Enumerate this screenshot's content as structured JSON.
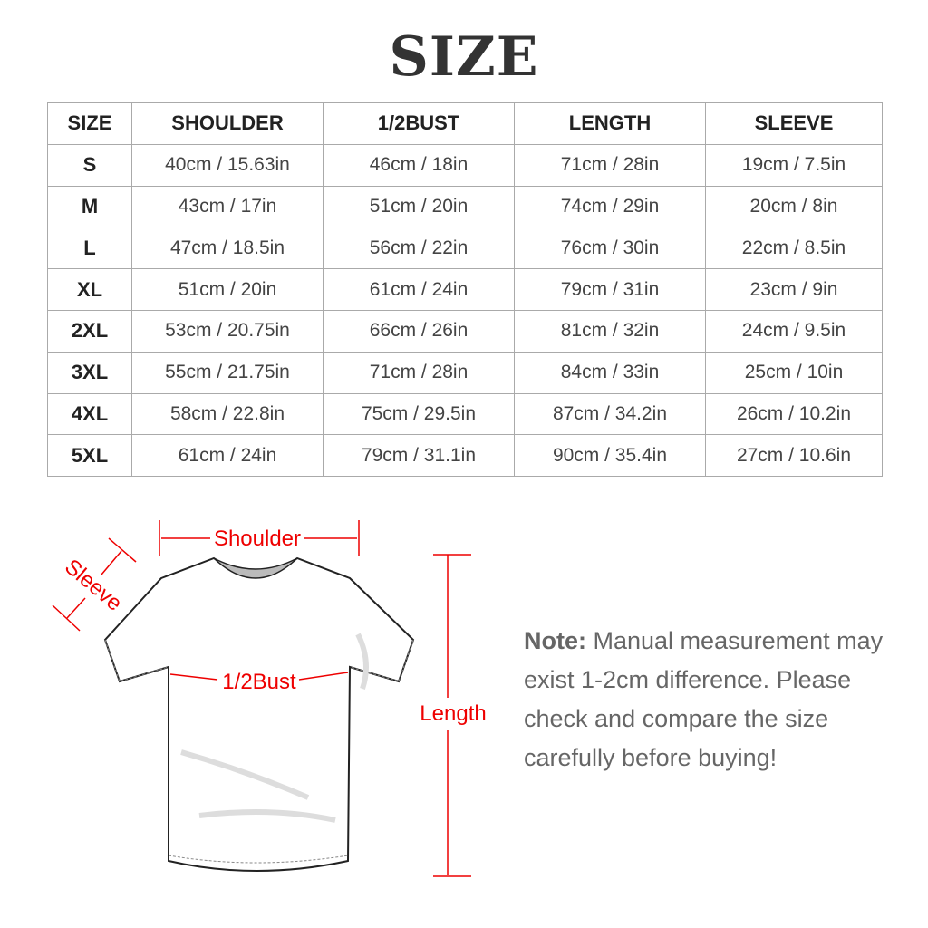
{
  "title": "SIZE",
  "table": {
    "headers": [
      "SIZE",
      "SHOULDER",
      "1/2BUST",
      "LENGTH",
      "SLEEVE"
    ],
    "rows": [
      [
        "S",
        "40cm / 15.63in",
        "46cm / 18in",
        "71cm / 28in",
        "19cm / 7.5in"
      ],
      [
        "M",
        "43cm / 17in",
        "51cm / 20in",
        "74cm / 29in",
        "20cm / 8in"
      ],
      [
        "L",
        "47cm / 18.5in",
        "56cm / 22in",
        "76cm / 30in",
        "22cm / 8.5in"
      ],
      [
        "XL",
        "51cm / 20in",
        "61cm / 24in",
        "79cm / 31in",
        "23cm / 9in"
      ],
      [
        "2XL",
        "53cm / 20.75in",
        "66cm / 26in",
        "81cm / 32in",
        "24cm / 9.5in"
      ],
      [
        "3XL",
        "55cm / 21.75in",
        "71cm / 28in",
        "84cm / 33in",
        "25cm / 10in"
      ],
      [
        "4XL",
        "58cm / 22.8in",
        "75cm / 29.5in",
        "87cm / 34.2in",
        "26cm / 10.2in"
      ],
      [
        "5XL",
        "61cm / 24in",
        "79cm / 31.1in",
        "90cm / 35.4in",
        "27cm / 10.6in"
      ]
    ]
  },
  "diagram": {
    "shoulder": "Shoulder",
    "sleeve": "Sleeve",
    "bust": "1/2Bust",
    "length": "Length",
    "accent_color": "#e00000"
  },
  "note": {
    "label": "Note:",
    "text": " Manual measurement may exist 1-2cm difference. Please check and compare the size carefully before buying!"
  }
}
